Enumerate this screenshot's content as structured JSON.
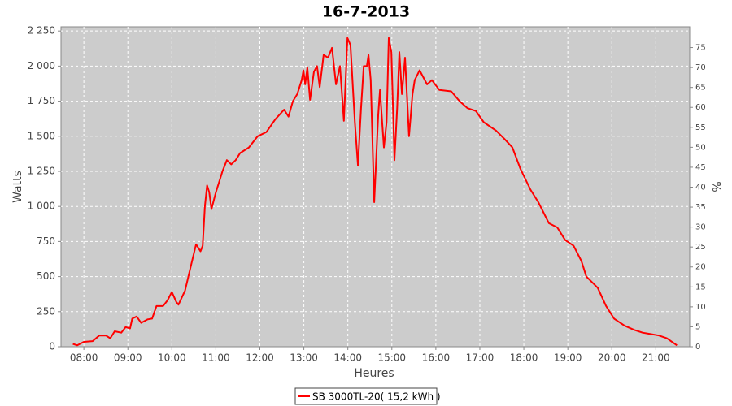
{
  "chart_data": {
    "type": "line",
    "title": "16-7-2013",
    "x_label": "Heures",
    "y_label": "Watts",
    "y2_label": "%",
    "xlim": [
      7.48,
      21.77
    ],
    "ylim": [
      0,
      2280
    ],
    "y2lim": [
      0,
      80.2
    ],
    "xticks": [
      {
        "value": 8,
        "label": "08:00"
      },
      {
        "value": 9,
        "label": "09:00"
      },
      {
        "value": 10,
        "label": "10:00"
      },
      {
        "value": 11,
        "label": "11:00"
      },
      {
        "value": 12,
        "label": "12:00"
      },
      {
        "value": 13,
        "label": "13:00"
      },
      {
        "value": 14,
        "label": "14:00"
      },
      {
        "value": 15,
        "label": "15:00"
      },
      {
        "value": 16,
        "label": "16:00"
      },
      {
        "value": 17,
        "label": "17:00"
      },
      {
        "value": 18,
        "label": "18:00"
      },
      {
        "value": 19,
        "label": "19:00"
      },
      {
        "value": 20,
        "label": "20:00"
      },
      {
        "value": 21,
        "label": "21:00"
      }
    ],
    "yticks": [
      0,
      250,
      500,
      750,
      {
        "value": 1000,
        "label": "1 000"
      },
      {
        "value": 1250,
        "label": "1 250"
      },
      {
        "value": 1500,
        "label": "1 500"
      },
      {
        "value": 1750,
        "label": "1 750"
      },
      {
        "value": 2000,
        "label": "2 000"
      },
      {
        "value": 2250,
        "label": "2 250"
      }
    ],
    "y2ticks": [
      0,
      5,
      10,
      15,
      20,
      25,
      30,
      35,
      40,
      45,
      50,
      55,
      60,
      65,
      70,
      75
    ],
    "grid": true,
    "x": [
      7.75,
      7.85,
      8.0,
      8.2,
      8.35,
      8.5,
      8.6,
      8.7,
      8.85,
      8.95,
      9.05,
      9.1,
      9.2,
      9.3,
      9.45,
      9.55,
      9.65,
      9.8,
      9.9,
      10.0,
      10.1,
      10.15,
      10.3,
      10.45,
      10.55,
      10.65,
      10.7,
      10.75,
      10.8,
      10.85,
      10.9,
      11.0,
      11.15,
      11.25,
      11.35,
      11.45,
      11.55,
      11.75,
      11.95,
      12.15,
      12.35,
      12.55,
      12.65,
      12.75,
      12.85,
      12.95,
      12.99,
      13.03,
      13.08,
      13.14,
      13.23,
      13.3,
      13.36,
      13.45,
      13.55,
      13.64,
      13.73,
      13.82,
      13.91,
      13.99,
      14.06,
      14.16,
      14.23,
      14.3,
      14.36,
      14.43,
      14.47,
      14.52,
      14.6,
      14.69,
      14.73,
      14.82,
      14.88,
      14.93,
      14.99,
      15.06,
      15.12,
      15.17,
      15.23,
      15.3,
      15.39,
      15.47,
      15.52,
      15.63,
      15.8,
      15.91,
      16.08,
      16.35,
      16.54,
      16.72,
      16.91,
      17.09,
      17.37,
      17.56,
      17.74,
      17.92,
      18.15,
      18.33,
      18.57,
      18.76,
      18.94,
      19.13,
      19.31,
      19.42,
      19.68,
      19.87,
      20.05,
      20.29,
      20.51,
      20.7,
      20.88,
      21.07,
      21.25,
      21.48
    ],
    "series": [
      {
        "name": "SB 3000TL-20( 15,2 kWh )",
        "color": "#ff0000",
        "values": [
          20,
          10,
          35,
          40,
          80,
          80,
          60,
          110,
          100,
          140,
          130,
          200,
          215,
          170,
          195,
          200,
          290,
          290,
          330,
          390,
          320,
          300,
          400,
          600,
          730,
          680,
          720,
          1000,
          1150,
          1100,
          980,
          1100,
          1250,
          1330,
          1300,
          1330,
          1380,
          1420,
          1500,
          1530,
          1620,
          1690,
          1640,
          1750,
          1800,
          1900,
          1970,
          1870,
          1990,
          1760,
          1960,
          2000,
          1850,
          2080,
          2060,
          2130,
          1870,
          2000,
          1610,
          2200,
          2150,
          1600,
          1290,
          1700,
          2000,
          2000,
          2080,
          1900,
          1030,
          1650,
          1830,
          1420,
          1600,
          2200,
          2100,
          1330,
          1700,
          2100,
          1800,
          2060,
          1500,
          1800,
          1900,
          1970,
          1870,
          1900,
          1830,
          1820,
          1750,
          1700,
          1680,
          1600,
          1540,
          1480,
          1420,
          1270,
          1120,
          1030,
          880,
          850,
          760,
          720,
          610,
          500,
          420,
          290,
          200,
          150,
          120,
          100,
          90,
          80,
          60,
          10
        ]
      }
    ]
  }
}
